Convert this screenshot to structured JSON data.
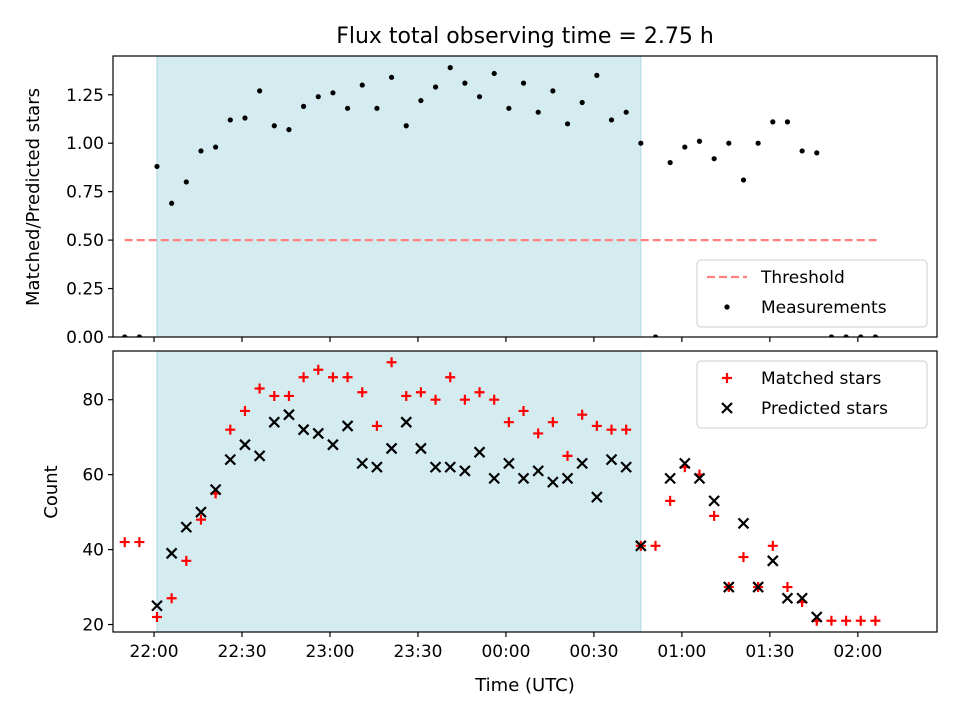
{
  "chart_data": [
    {
      "type": "scatter",
      "title": "Flux total observing time = 2.75 h",
      "xlabel": "",
      "ylabel": "Matched/Predicted stars",
      "xlim": [
        "21:46",
        "02:27"
      ],
      "ylim": [
        0,
        1.45
      ],
      "yticks": [
        0.0,
        0.25,
        0.5,
        0.75,
        1.0,
        1.25
      ],
      "ytick_labels": [
        "0.00",
        "0.25",
        "0.50",
        "0.75",
        "1.00",
        "1.25"
      ],
      "shaded_region": {
        "start": "22:01",
        "end": "00:46",
        "color": "#d4ebf0"
      },
      "threshold": {
        "name": "Threshold",
        "value": 0.5,
        "x_start": "21:50",
        "x_end": "02:07",
        "color": "#ff8080",
        "style": "dashed"
      },
      "legend": {
        "position": "lower-right",
        "entries": [
          "Threshold",
          "Measurements"
        ]
      },
      "series": [
        {
          "name": "Measurements",
          "marker": "dot",
          "color": "#000000",
          "points": [
            [
              "21:50",
              0.0
            ],
            [
              "21:55",
              0.0
            ],
            [
              "22:01",
              0.88
            ],
            [
              "22:06",
              0.69
            ],
            [
              "22:11",
              0.8
            ],
            [
              "22:16",
              0.96
            ],
            [
              "22:21",
              0.98
            ],
            [
              "22:26",
              1.12
            ],
            [
              "22:31",
              1.13
            ],
            [
              "22:36",
              1.27
            ],
            [
              "22:41",
              1.09
            ],
            [
              "22:46",
              1.07
            ],
            [
              "22:51",
              1.19
            ],
            [
              "22:56",
              1.24
            ],
            [
              "23:01",
              1.26
            ],
            [
              "23:06",
              1.18
            ],
            [
              "23:11",
              1.3
            ],
            [
              "23:16",
              1.18
            ],
            [
              "23:21",
              1.34
            ],
            [
              "23:26",
              1.09
            ],
            [
              "23:31",
              1.22
            ],
            [
              "23:36",
              1.29
            ],
            [
              "23:41",
              1.39
            ],
            [
              "23:46",
              1.31
            ],
            [
              "23:51",
              1.24
            ],
            [
              "23:56",
              1.36
            ],
            [
              "00:01",
              1.18
            ],
            [
              "00:06",
              1.31
            ],
            [
              "00:11",
              1.16
            ],
            [
              "00:16",
              1.27
            ],
            [
              "00:21",
              1.1
            ],
            [
              "00:26",
              1.21
            ],
            [
              "00:31",
              1.35
            ],
            [
              "00:36",
              1.12
            ],
            [
              "00:41",
              1.16
            ],
            [
              "00:46",
              1.0
            ],
            [
              "00:51",
              0.0
            ],
            [
              "00:56",
              0.9
            ],
            [
              "01:01",
              0.98
            ],
            [
              "01:06",
              1.01
            ],
            [
              "01:11",
              0.92
            ],
            [
              "01:16",
              1.0
            ],
            [
              "01:21",
              0.81
            ],
            [
              "01:26",
              1.0
            ],
            [
              "01:31",
              1.11
            ],
            [
              "01:36",
              1.11
            ],
            [
              "01:41",
              0.96
            ],
            [
              "01:46",
              0.95
            ],
            [
              "01:51",
              0.0
            ],
            [
              "01:56",
              0.0
            ],
            [
              "02:01",
              0.0
            ],
            [
              "02:06",
              0.0
            ]
          ]
        }
      ]
    },
    {
      "type": "scatter",
      "title": "",
      "xlabel": "Time (UTC)",
      "ylabel": "Count",
      "xlim": [
        "21:46",
        "02:27"
      ],
      "ylim": [
        18,
        93
      ],
      "yticks": [
        20,
        40,
        60,
        80
      ],
      "ytick_labels": [
        "20",
        "40",
        "60",
        "80"
      ],
      "xticks": [
        "22:00",
        "22:30",
        "23:00",
        "23:30",
        "00:00",
        "00:30",
        "01:00",
        "01:30",
        "02:00"
      ],
      "shaded_region": {
        "start": "22:01",
        "end": "00:46",
        "color": "#d4ebf0"
      },
      "legend": {
        "position": "top-right",
        "entries": [
          "Matched stars",
          "Predicted stars"
        ]
      },
      "series": [
        {
          "name": "Matched stars",
          "marker": "plus",
          "color": "#ff0000",
          "points": [
            [
              "21:50",
              42
            ],
            [
              "21:55",
              42
            ],
            [
              "22:01",
              22
            ],
            [
              "22:06",
              27
            ],
            [
              "22:11",
              37
            ],
            [
              "22:16",
              48
            ],
            [
              "22:21",
              55
            ],
            [
              "22:26",
              72
            ],
            [
              "22:31",
              77
            ],
            [
              "22:36",
              83
            ],
            [
              "22:41",
              81
            ],
            [
              "22:46",
              81
            ],
            [
              "22:51",
              86
            ],
            [
              "22:56",
              88
            ],
            [
              "23:01",
              86
            ],
            [
              "23:06",
              86
            ],
            [
              "23:11",
              82
            ],
            [
              "23:16",
              73
            ],
            [
              "23:21",
              90
            ],
            [
              "23:26",
              81
            ],
            [
              "23:31",
              82
            ],
            [
              "23:36",
              80
            ],
            [
              "23:41",
              86
            ],
            [
              "23:46",
              80
            ],
            [
              "23:51",
              82
            ],
            [
              "23:56",
              80
            ],
            [
              "00:01",
              74
            ],
            [
              "00:06",
              77
            ],
            [
              "00:11",
              71
            ],
            [
              "00:16",
              74
            ],
            [
              "00:21",
              65
            ],
            [
              "00:26",
              76
            ],
            [
              "00:31",
              73
            ],
            [
              "00:36",
              72
            ],
            [
              "00:41",
              72
            ],
            [
              "00:46",
              41
            ],
            [
              "00:51",
              41
            ],
            [
              "00:56",
              53
            ],
            [
              "01:01",
              62
            ],
            [
              "01:06",
              60
            ],
            [
              "01:11",
              49
            ],
            [
              "01:16",
              30
            ],
            [
              "01:21",
              38
            ],
            [
              "01:26",
              30
            ],
            [
              "01:31",
              41
            ],
            [
              "01:36",
              30
            ],
            [
              "01:41",
              26
            ],
            [
              "01:46",
              21
            ],
            [
              "01:51",
              21
            ],
            [
              "01:56",
              21
            ],
            [
              "02:01",
              21
            ],
            [
              "02:06",
              21
            ]
          ]
        },
        {
          "name": "Predicted stars",
          "marker": "x",
          "color": "#000000",
          "points": [
            [
              "22:01",
              25
            ],
            [
              "22:06",
              39
            ],
            [
              "22:11",
              46
            ],
            [
              "22:16",
              50
            ],
            [
              "22:21",
              56
            ],
            [
              "22:26",
              64
            ],
            [
              "22:31",
              68
            ],
            [
              "22:36",
              65
            ],
            [
              "22:41",
              74
            ],
            [
              "22:46",
              76
            ],
            [
              "22:51",
              72
            ],
            [
              "22:56",
              71
            ],
            [
              "23:01",
              68
            ],
            [
              "23:06",
              73
            ],
            [
              "23:11",
              63
            ],
            [
              "23:16",
              62
            ],
            [
              "23:21",
              67
            ],
            [
              "23:26",
              74
            ],
            [
              "23:31",
              67
            ],
            [
              "23:36",
              62
            ],
            [
              "23:41",
              62
            ],
            [
              "23:46",
              61
            ],
            [
              "23:51",
              66
            ],
            [
              "23:56",
              59
            ],
            [
              "00:01",
              63
            ],
            [
              "00:06",
              59
            ],
            [
              "00:11",
              61
            ],
            [
              "00:16",
              58
            ],
            [
              "00:21",
              59
            ],
            [
              "00:26",
              63
            ],
            [
              "00:31",
              54
            ],
            [
              "00:36",
              64
            ],
            [
              "00:41",
              62
            ],
            [
              "00:46",
              41
            ],
            [
              "00:56",
              59
            ],
            [
              "01:01",
              63
            ],
            [
              "01:06",
              59
            ],
            [
              "01:11",
              53
            ],
            [
              "01:16",
              30
            ],
            [
              "01:21",
              47
            ],
            [
              "01:26",
              30
            ],
            [
              "01:31",
              37
            ],
            [
              "01:36",
              27
            ],
            [
              "01:41",
              27
            ],
            [
              "01:46",
              22
            ]
          ]
        }
      ]
    }
  ]
}
